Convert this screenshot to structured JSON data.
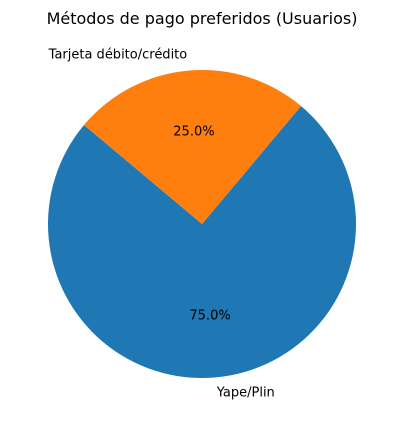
{
  "chart_data": {
    "type": "pie",
    "title": "Métodos de pago preferidos (Usuarios)",
    "start_angle_deg": 140,
    "direction": "counterclockwise",
    "slices": [
      {
        "label": "Yape/Plin",
        "value": 75.0,
        "pct_label": "75.0%",
        "color": "#1f77b4"
      },
      {
        "label": "Tarjeta débito/crédito",
        "value": 25.0,
        "pct_label": "25.0%",
        "color": "#ff7f0e"
      }
    ]
  }
}
